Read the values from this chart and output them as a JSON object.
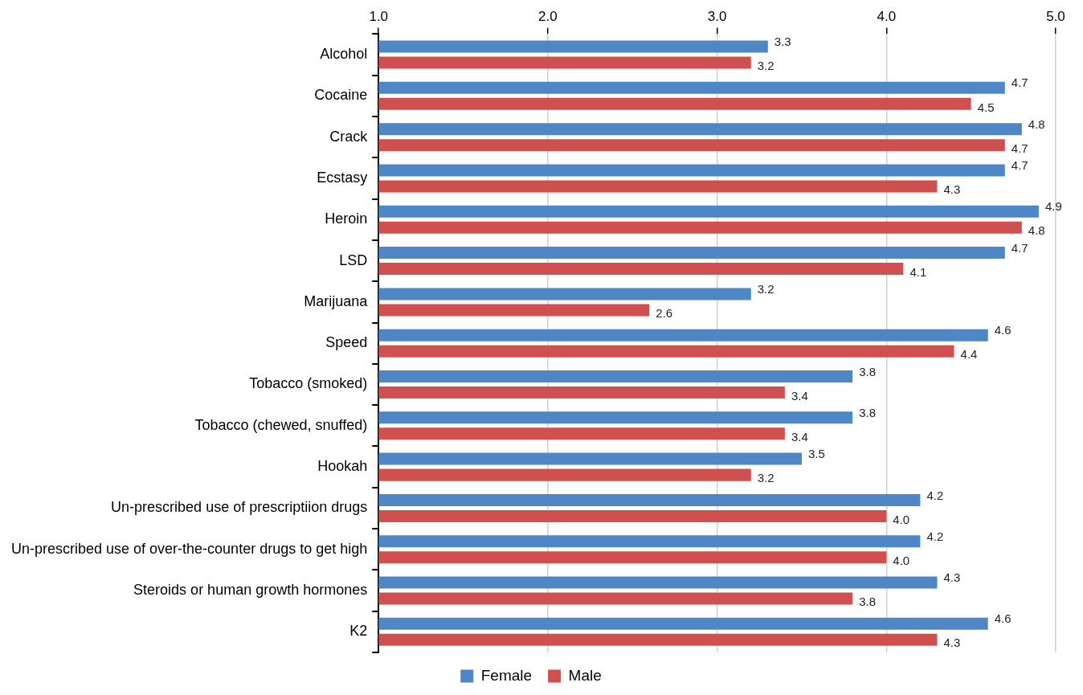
{
  "chart_data": {
    "type": "bar",
    "orientation": "horizontal",
    "categories": [
      "Alcohol",
      "Cocaine",
      "Crack",
      "Ecstasy",
      "Heroin",
      "LSD",
      "Marijuana",
      "Speed",
      "Tobacco (smoked)",
      "Tobacco (chewed, snuffed)",
      "Hookah",
      "Un-prescribed use of prescriptiion drugs",
      "Un-prescribed use of over-the-counter drugs to get high",
      "Steroids or human growth hormones",
      "K2"
    ],
    "series": [
      {
        "name": "Female",
        "color": "#4f86c6",
        "values": [
          3.3,
          4.7,
          4.8,
          4.7,
          4.9,
          4.7,
          3.2,
          4.6,
          3.8,
          3.8,
          3.5,
          4.2,
          4.2,
          4.3,
          4.6
        ],
        "value_labels": [
          "3.3",
          "4.7",
          "4.8",
          "4.7",
          "4.9",
          "4.7",
          "3.2",
          "4.6",
          "3.8",
          "3.8",
          "3.5",
          "4.2",
          "4.2",
          "4.3",
          "4.6"
        ]
      },
      {
        "name": "Male",
        "color": "#d0504f",
        "values": [
          3.2,
          4.5,
          4.7,
          4.3,
          4.8,
          4.1,
          2.6,
          4.4,
          3.4,
          3.4,
          3.2,
          4.0,
          4.0,
          3.8,
          4.3
        ],
        "value_labels": [
          "3.2",
          "4.5",
          "4.7",
          "4.3",
          "4.8",
          "4.1",
          "2.6",
          "4.4",
          "3.4",
          "3.4",
          "3.2",
          "4.0",
          "4.0",
          "3.8",
          "4.3"
        ]
      }
    ],
    "xlim": [
      1,
      5
    ],
    "xticks": [
      {
        "value": 1,
        "label": "1.0"
      },
      {
        "value": 2,
        "label": "2.0"
      },
      {
        "value": 3,
        "label": "3.0"
      },
      {
        "value": 4,
        "label": "4.0"
      },
      {
        "value": 5,
        "label": "5.0"
      }
    ],
    "grid": "x",
    "legend": "bottom"
  }
}
